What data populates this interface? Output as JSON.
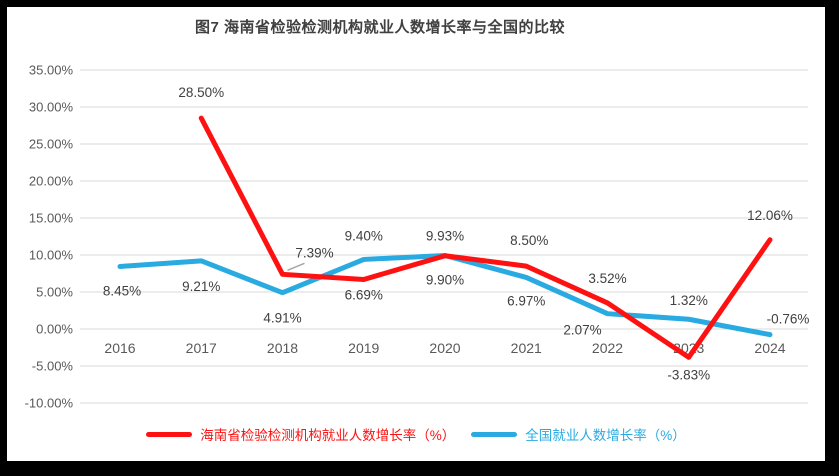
{
  "window": {
    "background": "#000000",
    "panel_background": "#ffffff"
  },
  "chart_data": {
    "type": "line",
    "title": "图7 海南省检验检测机构就业人数增长率与全国的比较",
    "categories": [
      "2016",
      "2017",
      "2018",
      "2019",
      "2020",
      "2021",
      "2022",
      "2023",
      "2024"
    ],
    "series": [
      {
        "name": "海南省检验检测机构就业人数增长率（%）",
        "color": "#fe1111",
        "values": [
          null,
          28.5,
          7.39,
          6.69,
          9.9,
          8.5,
          3.52,
          -3.83,
          12.06
        ],
        "data_labels": [
          null,
          {
            "text": "28.50%",
            "dx": 0,
            "dy": -21
          },
          {
            "text": "7.39%",
            "dx": 32,
            "dy": -17,
            "leader": true
          },
          {
            "text": "6.69%",
            "dx": 0,
            "dy": 20
          },
          {
            "text": "9.90%",
            "dx": 0,
            "dy": 29
          },
          {
            "text": "8.50%",
            "dx": 3,
            "dy": -21
          },
          {
            "text": "3.52%",
            "dx": 0,
            "dy": -20
          },
          {
            "text": "-3.83%",
            "dx": 0,
            "dy": 22
          },
          {
            "text": "12.06%",
            "dx": 0,
            "dy": -20
          }
        ]
      },
      {
        "name": "全国就业人数增长率（%）",
        "color": "#29abe2",
        "values": [
          8.45,
          9.21,
          4.91,
          9.4,
          9.93,
          6.97,
          2.07,
          1.32,
          -0.76
        ],
        "data_labels": [
          {
            "text": "8.45%",
            "dx": 2,
            "dy": 29
          },
          {
            "text": "9.21%",
            "dx": 0,
            "dy": 30
          },
          {
            "text": "4.91%",
            "dx": 0,
            "dy": 30
          },
          {
            "text": "9.40%",
            "dx": 0,
            "dy": -19
          },
          {
            "text": "9.93%",
            "dx": 0,
            "dy": -15
          },
          {
            "text": "6.97%",
            "dx": 0,
            "dy": 28
          },
          {
            "text": "2.07%",
            "dx": -25,
            "dy": 21
          },
          {
            "text": "1.32%",
            "dx": 0,
            "dy": -14
          },
          {
            "text": "-0.76%",
            "dx": 18,
            "dy": -11
          }
        ]
      }
    ],
    "ylim": [
      -10,
      35
    ],
    "ytick_step": 5,
    "ytick_labels": [
      "35.00%",
      "30.00%",
      "25.00%",
      "20.00%",
      "15.00%",
      "10.00%",
      "5.00%",
      "0.00%",
      "-5.00%",
      "-10.00%"
    ],
    "grid": true,
    "legend_position": "bottom",
    "colors": {
      "gridline": "#d9d9d9",
      "axis_text": "#595959",
      "data_label_text": "#404040",
      "leader_line": "#a6a6a6",
      "title_text": "#404040"
    }
  }
}
